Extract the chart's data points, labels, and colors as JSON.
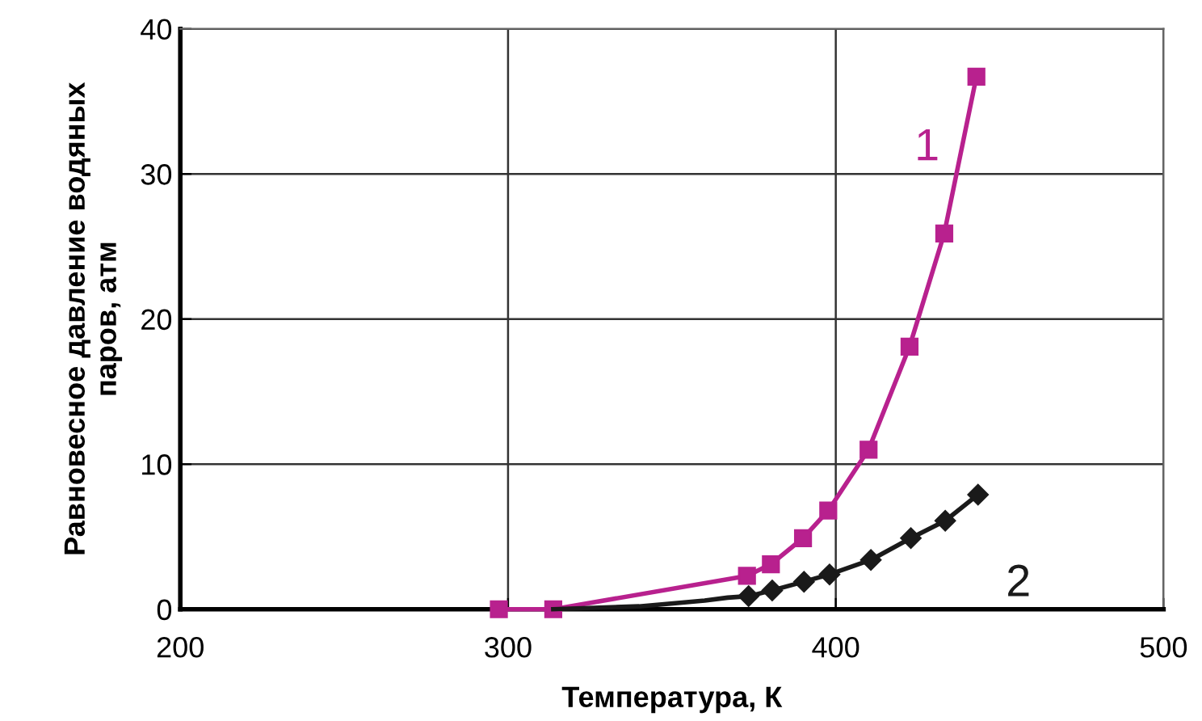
{
  "chart_data": {
    "type": "line",
    "xlabel": "Температура, К",
    "ylabel": "Равновесное давление водяных\nпаров, атм",
    "xlim": [
      200,
      500
    ],
    "xticks": [
      200,
      300,
      400,
      500
    ],
    "ylim": [
      0,
      40
    ],
    "yticks": [
      0,
      10,
      20,
      30,
      40
    ],
    "grid": true,
    "line_style": "solid",
    "series": [
      {
        "name": "1",
        "color": "#b8218e",
        "marker": "square",
        "x": [
          297.2,
          313.8,
          372.9,
          380.2,
          390.0,
          397.7,
          410.0,
          422.5,
          433.1,
          442.9
        ],
        "values": [
          0,
          0,
          2.3,
          3.1,
          4.9,
          6.8,
          11.0,
          18.1,
          25.9,
          36.7
        ]
      },
      {
        "color": "#1a1a1a",
        "marker": "none",
        "x": [
          313.8,
          340,
          360,
          367,
          373.4
        ],
        "values": [
          0,
          0.2,
          0.6,
          0.8,
          0.9
        ]
      },
      {
        "name": "2",
        "color": "#1a1a1a",
        "marker": "diamond",
        "x": [
          373.4,
          380.6,
          390.3,
          398.1,
          410.7,
          422.9,
          433.4,
          443.4
        ],
        "values": [
          0.9,
          1.3,
          1.9,
          2.4,
          3.4,
          4.9,
          6.1,
          7.9
        ]
      }
    ]
  }
}
